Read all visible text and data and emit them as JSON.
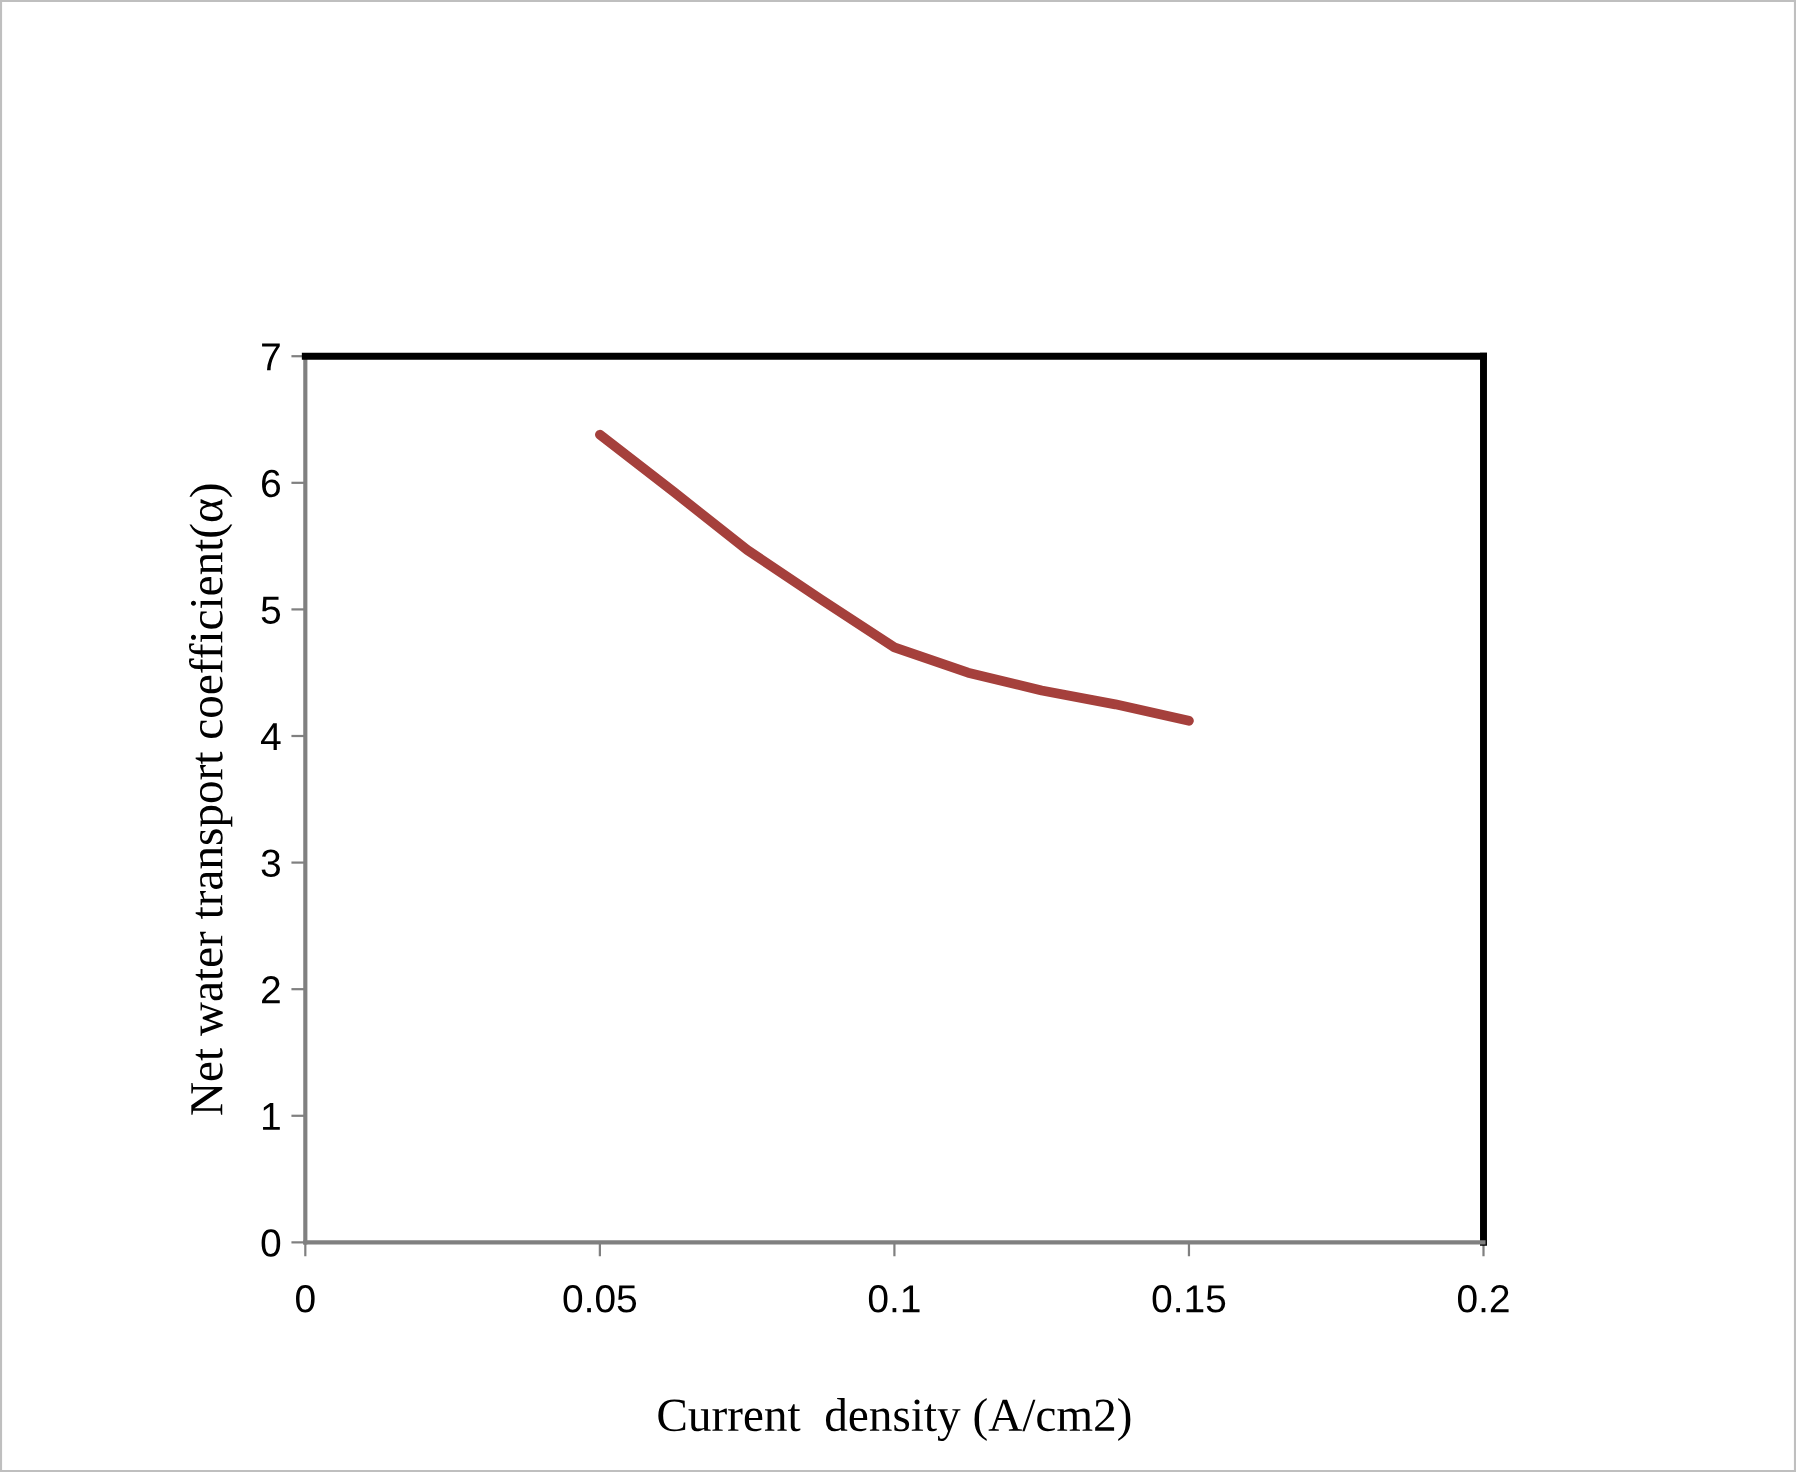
{
  "chart_data": {
    "type": "line",
    "xlabel": "Current  density (A/cm2)",
    "ylabel": "Net water transport coefficient(α)",
    "x": [
      0.05,
      0.0625,
      0.075,
      0.0875,
      0.1,
      0.1125,
      0.125,
      0.1375,
      0.15
    ],
    "series": [
      {
        "color": "#a5403c",
        "values": [
          6.38,
          5.93,
          5.47,
          5.08,
          4.7,
          4.5,
          4.36,
          4.25,
          4.12
        ]
      }
    ],
    "xlim": [
      0,
      0.2
    ],
    "xticks": [
      0,
      0.05,
      0.1,
      0.15,
      0.2
    ],
    "ylim": [
      0,
      7
    ],
    "yticks": [
      0,
      1,
      2,
      3,
      4,
      5,
      6,
      7
    ],
    "grid": false,
    "legend": false,
    "marker": "none",
    "line_style": "solid"
  }
}
